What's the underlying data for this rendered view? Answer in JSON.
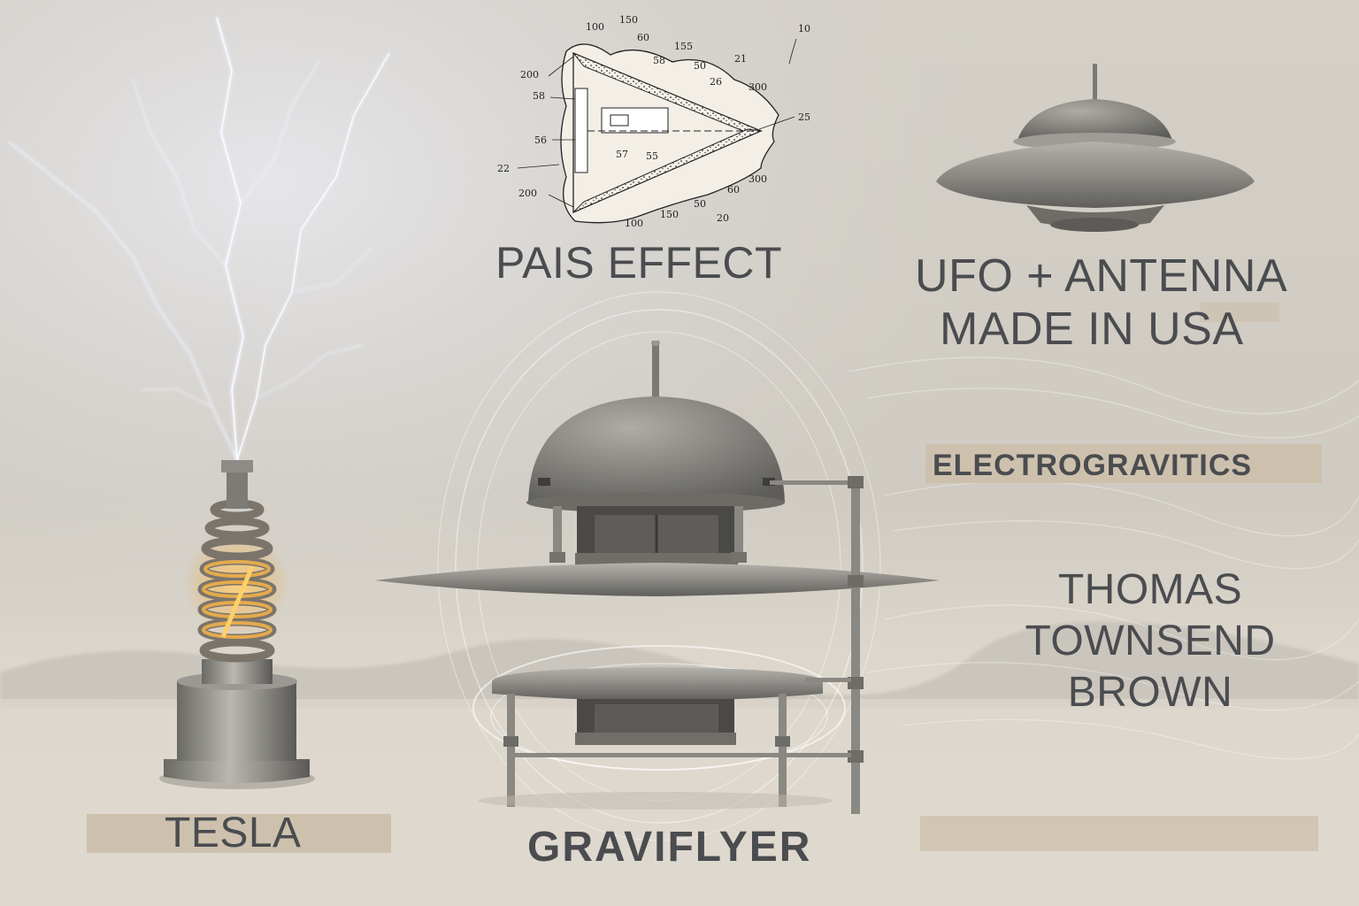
{
  "labels": {
    "pais_effect": "PAIS EFFECT",
    "ufo_line1": "UFO + ANTENNA",
    "ufo_line2": "MADE IN USA",
    "electrogravitics": "ELECTROGRAVITICS",
    "ttb_line1": "THOMAS",
    "ttb_line2": "TOWNSEND",
    "ttb_line3": "BROWN",
    "tesla": "TESLA",
    "graviflyer": "GRAVIFLYER"
  },
  "patent_numbers": {
    "n100a": "100",
    "n150a": "150",
    "n60a": "60",
    "n155": "155",
    "n10": "10",
    "n58a": "58",
    "n50a": "50",
    "n21": "21",
    "n200a": "200",
    "n58b": "58",
    "n26": "26",
    "n300a": "300",
    "n25": "25",
    "n56": "56",
    "n57": "57",
    "n55": "55",
    "n22": "22",
    "n300b": "300",
    "n60b": "60",
    "n200b": "200",
    "n50b": "50",
    "n100b": "100",
    "n150b": "150",
    "n20": "20"
  },
  "colors": {
    "text": "#4a4c4f",
    "label_pad": "#cdc1ae",
    "metal": "#8a8883",
    "coil_glow": "#e8a33a",
    "lightning": "#eef0ff"
  }
}
